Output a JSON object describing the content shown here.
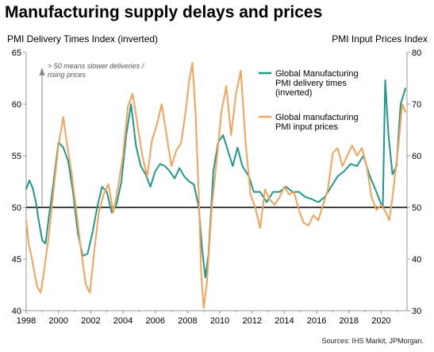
{
  "title": "Manufacturing supply delays and prices",
  "source": "Sources: IHS Markit, JPMorgan.",
  "colors": {
    "delivery": "#1f978b",
    "prices": "#f4a259",
    "axis": "#9a9a9a",
    "ref": "#000000"
  },
  "chart_data": {
    "type": "line",
    "left_axis": {
      "label": "PMI Delivery Times Index (inverted)",
      "range": [
        40,
        65
      ],
      "ticks": [
        40,
        45,
        50,
        55,
        60,
        65
      ]
    },
    "right_axis": {
      "label": "PMI Input Prices Index",
      "range": [
        30,
        80
      ],
      "ticks": [
        30,
        40,
        50,
        60,
        70,
        80
      ]
    },
    "x_axis": {
      "range": [
        1998,
        2021.6
      ],
      "ticks": [
        1998,
        2000,
        2002,
        2004,
        2006,
        2008,
        2010,
        2012,
        2014,
        2016,
        2018,
        2020
      ]
    },
    "reference_line": {
      "axis": "left",
      "value": 50
    },
    "annotation": {
      "lines": [
        "> 50 means slower deliveries /",
        "rising prices"
      ]
    },
    "legend_position": "top-right",
    "series": [
      {
        "name": "Global Manufacturing PMI delivery times (inverted)",
        "legend_lines": [
          "Global Manufacturing",
          "PMI delivery times",
          "(inverted)"
        ],
        "axis": "left",
        "x": [
          1998.0,
          1998.2,
          1998.4,
          1998.6,
          1998.8,
          1999.0,
          1999.2,
          1999.4,
          1999.7,
          2000.0,
          2000.3,
          2000.6,
          2000.9,
          2001.2,
          2001.5,
          2001.8,
          2002.1,
          2002.4,
          2002.7,
          2003.0,
          2003.3,
          2003.6,
          2003.9,
          2004.2,
          2004.5,
          2004.8,
          2005.1,
          2005.4,
          2005.7,
          2006.0,
          2006.3,
          2006.6,
          2006.9,
          2007.2,
          2007.5,
          2007.8,
          2008.1,
          2008.4,
          2008.7,
          2008.9,
          2009.1,
          2009.3,
          2009.6,
          2009.9,
          2010.2,
          2010.5,
          2010.8,
          2011.1,
          2011.4,
          2011.8,
          2012.1,
          2012.5,
          2012.9,
          2013.3,
          2013.7,
          2014.1,
          2014.5,
          2014.9,
          2015.3,
          2015.7,
          2016.1,
          2016.5,
          2016.9,
          2017.3,
          2017.7,
          2018.1,
          2018.5,
          2018.9,
          2019.3,
          2019.7,
          2019.95,
          2020.1,
          2020.25,
          2020.45,
          2020.7,
          2020.95,
          2021.2,
          2021.5
        ],
        "y": [
          51.8,
          52.6,
          51.9,
          50.5,
          48.5,
          46.8,
          46.5,
          49.0,
          52.5,
          56.3,
          55.8,
          54.5,
          51.5,
          47.5,
          45.3,
          45.5,
          47.5,
          50.0,
          52.0,
          51.5,
          49.5,
          50.3,
          52.5,
          57.0,
          60.0,
          56.0,
          54.0,
          53.2,
          52.0,
          53.5,
          54.2,
          54.0,
          53.5,
          52.8,
          53.8,
          53.0,
          52.5,
          52.2,
          50.0,
          46.0,
          43.2,
          45.5,
          53.5,
          56.3,
          57.0,
          55.5,
          54.0,
          55.8,
          54.0,
          53.0,
          51.5,
          51.5,
          50.5,
          51.5,
          51.5,
          52.0,
          51.5,
          51.5,
          51.0,
          50.8,
          50.5,
          51.0,
          52.0,
          53.0,
          53.5,
          54.2,
          54.0,
          55.0,
          53.0,
          51.5,
          50.5,
          50.0,
          62.3,
          57.0,
          53.2,
          54.0,
          60.0,
          61.5
        ]
      },
      {
        "name": "Global manufacturing PMI input prices",
        "legend_lines": [
          "Global manufacturing",
          "PMI input prices"
        ],
        "axis": "right",
        "x": [
          1998.0,
          1998.15,
          1998.3,
          1998.5,
          1998.7,
          1998.9,
          1999.1,
          1999.4,
          1999.7,
          2000.0,
          2000.3,
          2000.5,
          2000.8,
          2001.1,
          2001.4,
          2001.7,
          2001.95,
          2002.2,
          2002.5,
          2002.8,
          2003.1,
          2003.4,
          2003.7,
          2004.0,
          2004.3,
          2004.6,
          2004.9,
          2005.2,
          2005.5,
          2005.8,
          2006.1,
          2006.4,
          2006.7,
          2007.0,
          2007.3,
          2007.6,
          2007.9,
          2008.1,
          2008.3,
          2008.5,
          2008.7,
          2008.85,
          2009.0,
          2009.2,
          2009.5,
          2009.8,
          2010.1,
          2010.4,
          2010.7,
          2011.0,
          2011.3,
          2011.6,
          2011.9,
          2012.2,
          2012.5,
          2012.8,
          2013.1,
          2013.4,
          2013.7,
          2014.0,
          2014.3,
          2014.6,
          2014.9,
          2015.2,
          2015.5,
          2015.8,
          2016.1,
          2016.4,
          2016.7,
          2017.0,
          2017.3,
          2017.6,
          2017.9,
          2018.2,
          2018.5,
          2018.8,
          2019.1,
          2019.4,
          2019.7,
          2020.0,
          2020.3,
          2020.5,
          2020.7,
          2020.9,
          2021.1,
          2021.3,
          2021.5
        ],
        "y": [
          47.5,
          43.0,
          41.0,
          37.5,
          34.5,
          33.5,
          37.5,
          44.5,
          53.5,
          62.0,
          67.5,
          63.0,
          57.0,
          49.5,
          41.5,
          35.0,
          33.5,
          41.0,
          49.0,
          52.5,
          54.5,
          49.0,
          54.0,
          60.0,
          69.5,
          72.0,
          66.0,
          60.0,
          56.0,
          63.0,
          66.0,
          70.0,
          64.0,
          58.0,
          61.0,
          62.5,
          69.0,
          74.5,
          78.0,
          68.0,
          52.0,
          37.0,
          30.5,
          35.5,
          50.0,
          59.0,
          68.5,
          73.5,
          64.0,
          72.0,
          76.5,
          62.5,
          52.5,
          50.0,
          46.0,
          53.5,
          51.5,
          50.5,
          52.0,
          54.0,
          52.5,
          53.0,
          49.5,
          47.0,
          46.5,
          48.5,
          47.5,
          50.5,
          53.5,
          60.5,
          61.5,
          58.0,
          60.0,
          62.0,
          60.0,
          61.5,
          58.0,
          52.0,
          49.5,
          50.5,
          49.0,
          47.5,
          52.0,
          57.5,
          63.0,
          70.0,
          68.5
        ]
      }
    ]
  }
}
